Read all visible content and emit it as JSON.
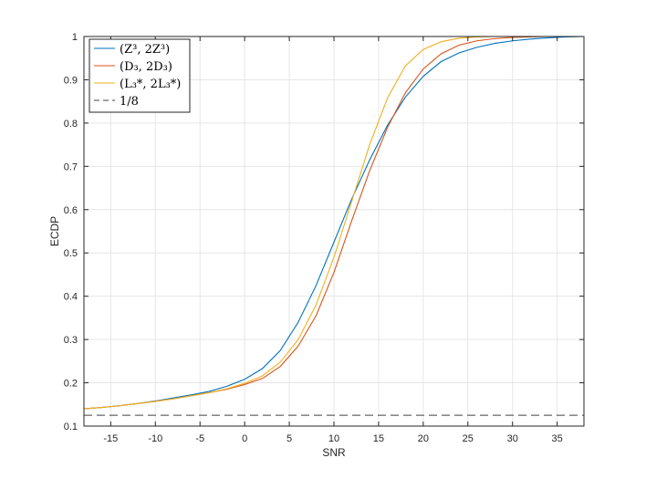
{
  "chart_data": {
    "type": "line",
    "title": "",
    "xlabel": "SNR",
    "ylabel": "ECDP",
    "xlim": [
      -18,
      38
    ],
    "ylim": [
      0.1,
      1.0
    ],
    "xticks": [
      -15,
      -10,
      -5,
      0,
      5,
      10,
      15,
      20,
      25,
      30,
      35
    ],
    "yticks": [
      0.1,
      0.2,
      0.3,
      0.4,
      0.5,
      0.6,
      0.7,
      0.8,
      0.9,
      1.0
    ],
    "xtick_labels": [
      "-15",
      "-10",
      "-5",
      "0",
      "5",
      "10",
      "15",
      "20",
      "25",
      "30",
      "35"
    ],
    "ytick_labels": [
      "0.1",
      "0.2",
      "0.3",
      "0.4",
      "0.5",
      "0.6",
      "0.7",
      "0.8",
      "0.9",
      "1"
    ],
    "grid": true,
    "legend_position": "top-left",
    "x": [
      -18,
      -16,
      -14,
      -12,
      -10,
      -8,
      -6,
      -4,
      -2,
      0,
      2,
      4,
      6,
      8,
      10,
      12,
      14,
      16,
      18,
      20,
      22,
      24,
      26,
      28,
      30,
      32,
      34,
      36,
      38
    ],
    "series": [
      {
        "name": "(Z³, 2Z³)",
        "color": "#0072BD",
        "dashed": false,
        "values": [
          0.14,
          0.143,
          0.147,
          0.152,
          0.158,
          0.165,
          0.172,
          0.18,
          0.192,
          0.208,
          0.233,
          0.275,
          0.34,
          0.425,
          0.525,
          0.625,
          0.715,
          0.795,
          0.86,
          0.908,
          0.942,
          0.962,
          0.975,
          0.984,
          0.99,
          0.994,
          0.997,
          0.999,
          1.0
        ]
      },
      {
        "name": "(D₃, 2D₃)",
        "color": "#D95319",
        "dashed": false,
        "values": [
          0.14,
          0.143,
          0.147,
          0.152,
          0.157,
          0.163,
          0.17,
          0.177,
          0.185,
          0.196,
          0.21,
          0.238,
          0.285,
          0.355,
          0.455,
          0.575,
          0.69,
          0.79,
          0.87,
          0.925,
          0.96,
          0.98,
          0.99,
          0.995,
          0.998,
          0.999,
          1.0,
          1.0,
          1.0
        ]
      },
      {
        "name": "(L₃*, 2L₃*)",
        "color": "#EDB120",
        "dashed": false,
        "values": [
          0.14,
          0.143,
          0.147,
          0.152,
          0.157,
          0.163,
          0.17,
          0.177,
          0.186,
          0.199,
          0.216,
          0.248,
          0.3,
          0.38,
          0.49,
          0.62,
          0.75,
          0.858,
          0.932,
          0.97,
          0.988,
          0.996,
          0.999,
          1.0,
          1.0,
          1.0,
          1.0,
          1.0,
          1.0
        ]
      },
      {
        "name": "1/8",
        "color": "#404040",
        "dashed": true,
        "values": [
          0.125,
          0.125,
          0.125,
          0.125,
          0.125,
          0.125,
          0.125,
          0.125,
          0.125,
          0.125,
          0.125,
          0.125,
          0.125,
          0.125,
          0.125,
          0.125,
          0.125,
          0.125,
          0.125,
          0.125,
          0.125,
          0.125,
          0.125,
          0.125,
          0.125,
          0.125,
          0.125,
          0.125,
          0.125
        ]
      }
    ]
  }
}
